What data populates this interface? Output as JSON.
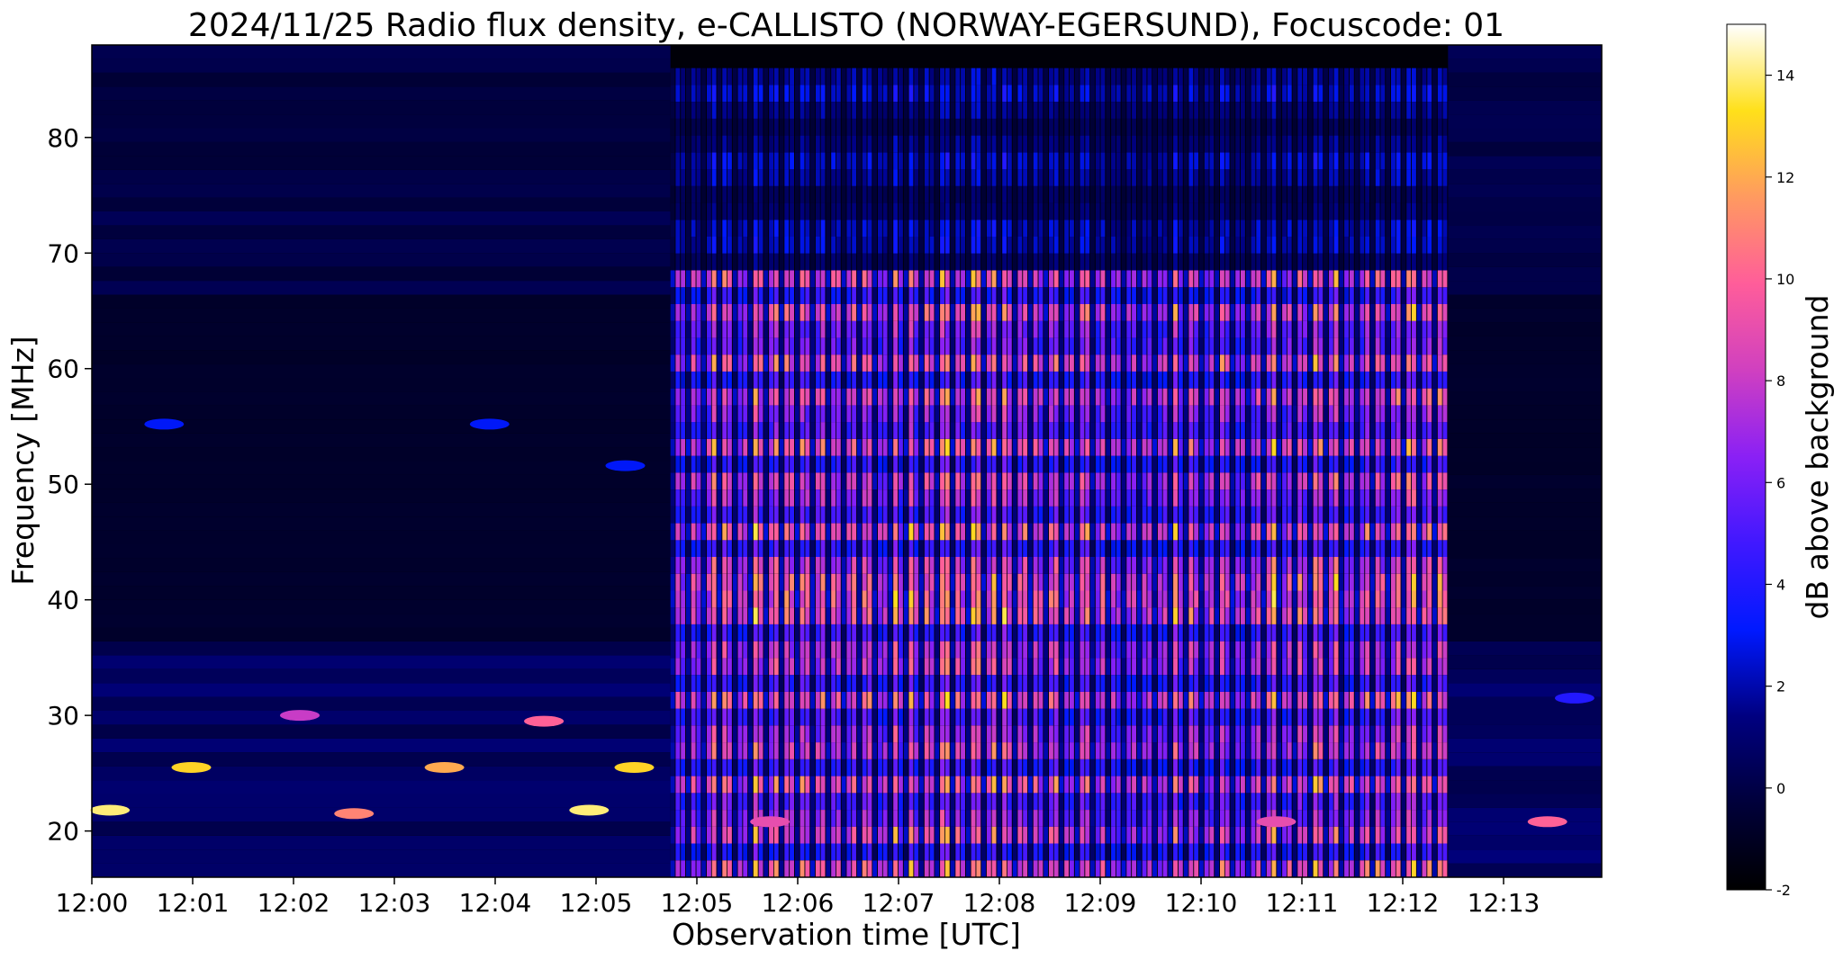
{
  "chart_data": {
    "type": "heatmap",
    "title": "2024/11/25  Radio flux density, e-CALLISTO (NORWAY-EGERSUND), Focuscode: 01",
    "xlabel": "Observation time [UTC]",
    "ylabel": "Frequency [MHz]",
    "colorbar_label": "dB above background",
    "colormap": "gnuplot2",
    "x_tick_labels": [
      "12:00",
      "12:01",
      "12:02",
      "12:03",
      "12:04",
      "12:05",
      "12:05",
      "12:06",
      "12:07",
      "12:08",
      "12:09",
      "12:10",
      "12:11",
      "12:12",
      "12:13"
    ],
    "y_ticks": [
      20,
      30,
      40,
      50,
      60,
      70,
      80
    ],
    "ylim": [
      16,
      88
    ],
    "colorbar_ticks": [
      -2,
      0,
      2,
      4,
      6,
      8,
      10,
      12,
      14
    ],
    "colorbar_range": [
      -2,
      15
    ],
    "burst_interval": {
      "start": "12:05:20",
      "end": "12:12:30"
    },
    "burst_peak_db": 14,
    "background_db": -1,
    "isolated_features": [
      {
        "time": "12:00:10",
        "freq_mhz": 21.8,
        "db": 14
      },
      {
        "time": "12:00:55",
        "freq_mhz": 25.5,
        "db": 13
      },
      {
        "time": "12:02:25",
        "freq_mhz": 21.5,
        "db": 11
      },
      {
        "time": "12:03:15",
        "freq_mhz": 25.5,
        "db": 12
      },
      {
        "time": "12:04:35",
        "freq_mhz": 21.8,
        "db": 14
      },
      {
        "time": "12:04:10",
        "freq_mhz": 29.5,
        "db": 10
      },
      {
        "time": "12:01:55",
        "freq_mhz": 30.0,
        "db": 8
      },
      {
        "time": "12:05:00",
        "freq_mhz": 25.5,
        "db": 13
      },
      {
        "time": "12:00:40",
        "freq_mhz": 55.2,
        "db": 3
      },
      {
        "time": "12:03:40",
        "freq_mhz": 55.2,
        "db": 3
      },
      {
        "time": "12:04:55",
        "freq_mhz": 51.6,
        "db": 3
      },
      {
        "time": "12:06:15",
        "freq_mhz": 20.8,
        "db": 9
      },
      {
        "time": "12:10:55",
        "freq_mhz": 20.8,
        "db": 9
      },
      {
        "time": "12:13:25",
        "freq_mhz": 20.8,
        "db": 10
      },
      {
        "time": "12:13:40",
        "freq_mhz": 31.5,
        "db": 4
      }
    ]
  },
  "colors": {
    "background": "#ffffff",
    "axes": "#000000"
  }
}
